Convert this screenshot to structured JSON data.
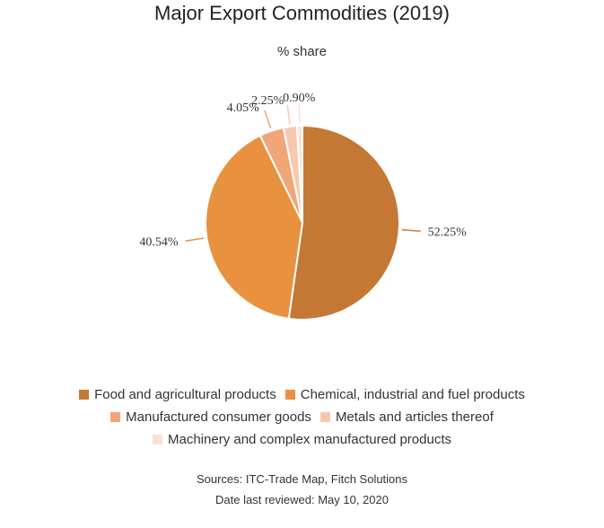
{
  "chart_data": {
    "type": "pie",
    "title": "Major Export Commodities (2019)",
    "subtitle": "% share",
    "categories": [
      "Food and agricultural products",
      "Chemical, industrial and fuel products",
      "Manufactured consumer goods",
      "Metals and articles thereof",
      "Machinery and complex manufactured products"
    ],
    "values": [
      52.25,
      40.54,
      4.05,
      2.25,
      0.9
    ],
    "data_labels": [
      "52.25%",
      "40.54%",
      "4.05%",
      "2.25%",
      "0.90%"
    ],
    "colors": [
      "#c47834",
      "#e8913f",
      "#f2a576",
      "#f7c8ae",
      "#fbe0d5"
    ],
    "legend_position": "bottom"
  },
  "footer": {
    "sources": "Sources: ITC-Trade Map, Fitch Solutions",
    "date_reviewed": "Date last reviewed: May 10, 2020"
  }
}
